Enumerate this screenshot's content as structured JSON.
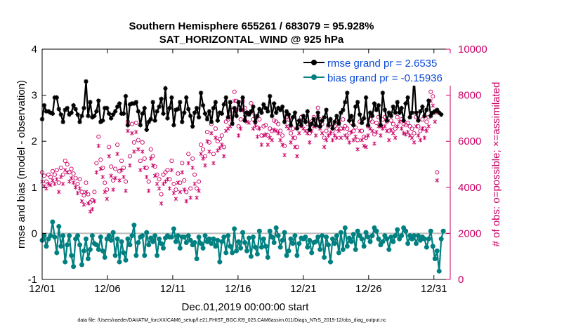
{
  "chart_data": {
    "type": "line",
    "title_line1": "Southern Hemisphere 655261 / 683079 = 95.928%",
    "title_line2": "SAT_HORIZONTAL_WIND @ 925 hPa",
    "xlabel": "Dec.01,2019 00:00:00 start",
    "ylabel_left": "rmse and bias (model - observation)",
    "ylabel_right": "# of obs: o=possible; ×=assimilated",
    "footnote": "data file: /Users/raeder/DAI/ATM_forcXX/CAM6_setup/f.e21.FHIST_BGC.f09_025.CAM6assim.011/Diags_NTrS_2019-12/obs_diag_output.nc",
    "xlim": [
      1,
      32.25
    ],
    "ylim_left": [
      -1,
      4
    ],
    "ylim_right": [
      0,
      10000
    ],
    "x_ticks": [
      1,
      6,
      11,
      16,
      21,
      26,
      31
    ],
    "x_tick_labels": [
      "12/01",
      "12/06",
      "12/11",
      "12/16",
      "12/21",
      "12/26",
      "12/31"
    ],
    "y_ticks_left": [
      -1,
      0,
      1,
      2,
      3,
      4
    ],
    "y_tick_labels_left": [
      "-1",
      "0",
      "1",
      "2",
      "3",
      "4"
    ],
    "y_ticks_right": [
      0,
      2000,
      4000,
      6000,
      8000,
      10000
    ],
    "y_tick_labels_right": [
      "0",
      "2000",
      "4000",
      "6000",
      "8000",
      "10000"
    ],
    "zero_line": 0,
    "colors": {
      "rmse": "#000000",
      "bias": "#008080",
      "obs": "#cc0066",
      "zero": "#bbbbbb"
    },
    "series": [
      {
        "name": "rmse grand pr = 2.6535",
        "axis": "left",
        "values": [
          2.48,
          2.78,
          2.65,
          2.65,
          2.62,
          2.6,
          2.95,
          2.95,
          2.7,
          2.58,
          2.42,
          2.68,
          2.72,
          2.58,
          2.62,
          2.78,
          2.7,
          2.58,
          2.42,
          2.55,
          2.72,
          3.3,
          2.55,
          2.85,
          2.52,
          2.55,
          2.65,
          2.88,
          2.42,
          2.45,
          2.72,
          2.72,
          2.6,
          2.5,
          2.58,
          2.65,
          2.75,
          2.82,
          2.6,
          2.6,
          2.98,
          2.35,
          2.8,
          2.82,
          2.82,
          2.85,
          2.65,
          2.35,
          2.6,
          2.72,
          2.25,
          2.42,
          2.48,
          2.85,
          2.45,
          2.65,
          2.75,
          2.92,
          2.6,
          3.15,
          2.5,
          2.72,
          2.95,
          2.35,
          2.68,
          2.7,
          2.85,
          2.42,
          2.62,
          2.95,
          2.7,
          2.55,
          2.32,
          2.62,
          2.72,
          2.52,
          3.05,
          2.78,
          2.6,
          2.48,
          2.65,
          2.42,
          2.72,
          2.85,
          2.45,
          2.62,
          2.6,
          2.8,
          2.95,
          2.52,
          2.85,
          2.38,
          2.72,
          2.55,
          2.85,
          2.68,
          2.95,
          2.45,
          2.62,
          2.58,
          2.65,
          2.75,
          2.42,
          2.55,
          2.7,
          2.62,
          2.8,
          2.72,
          2.65,
          2.98,
          2.55,
          2.82,
          2.62,
          2.72,
          2.68,
          2.75,
          2.42,
          2.65,
          2.58,
          2.35,
          2.52,
          2.62,
          2.28,
          2.45,
          2.35,
          2.55,
          2.42,
          2.65,
          2.25,
          2.38,
          2.48,
          2.35,
          2.62,
          2.32,
          2.45,
          2.52,
          2.68,
          2.35,
          2.48,
          2.28,
          2.42,
          2.55,
          2.38,
          2.62,
          2.68,
          2.85,
          3.05,
          2.45,
          2.55,
          2.35,
          2.75,
          2.85,
          2.58,
          2.4,
          2.5,
          2.95,
          2.35,
          2.62,
          2.55,
          2.82,
          2.68,
          2.78,
          2.35,
          3.05,
          2.68,
          2.45,
          2.62,
          2.55,
          2.75,
          2.62,
          2.85,
          2.62,
          2.72,
          2.45,
          2.82,
          2.95,
          2.52,
          2.62,
          3.38,
          2.62,
          2.45,
          2.65,
          2.75,
          2.55,
          2.68,
          2.88,
          2.55,
          2.62,
          2.65,
          2.68,
          2.62,
          2.58
        ]
      },
      {
        "name": "bias grand pr = -0.15936",
        "axis": "left",
        "values": [
          -0.15,
          -0.05,
          -0.28,
          -0.12,
          -0.05,
          0.25,
          -0.08,
          -0.42,
          0.15,
          -0.28,
          -0.05,
          -0.62,
          -0.25,
          -0.05,
          -0.48,
          -0.72,
          -0.12,
          -0.05,
          -0.25,
          -0.68,
          -0.38,
          -0.12,
          -0.55,
          -0.35,
          -0.05,
          -0.22,
          -0.25,
          -0.35,
          -0.08,
          -0.38,
          -0.52,
          -0.12,
          -0.05,
          -0.15,
          0.02,
          -0.48,
          -0.12,
          -0.62,
          -0.18,
          -0.42,
          -0.58,
          -0.12,
          -0.25,
          -0.05,
          0.18,
          -0.48,
          -0.2,
          -0.08,
          -0.05,
          -0.48,
          0.02,
          -0.25,
          -0.1,
          -0.18,
          -0.05,
          -0.48,
          -0.12,
          -0.22,
          -0.32,
          -0.1,
          -0.05,
          -0.08,
          -0.08,
          0.1,
          -0.18,
          -0.05,
          -0.32,
          -0.08,
          -0.08,
          -0.2,
          -0.05,
          -0.15,
          -0.25,
          -0.2,
          -0.55,
          -0.08,
          -0.22,
          -0.32,
          -0.05,
          -0.18,
          -0.12,
          -0.22,
          -0.12,
          -0.28,
          -0.15,
          -0.62,
          -0.18,
          -0.08,
          -0.42,
          -0.05,
          -0.28,
          -0.42,
          0.1,
          -0.38,
          -0.18,
          -0.32,
          0.02,
          -0.2,
          -0.38,
          -0.1,
          -0.5,
          -0.08,
          -0.3,
          -0.45,
          0.05,
          -0.3,
          -0.12,
          -0.28,
          -0.52,
          0.05,
          -0.08,
          -0.2,
          0.12,
          -0.05,
          -0.3,
          -0.15,
          0.02,
          -0.48,
          -0.38,
          -0.12,
          -0.22,
          -0.05,
          -0.48,
          -0.22,
          -0.1,
          -0.12,
          -0.08,
          -0.3,
          -0.15,
          -0.42,
          -0.2,
          -0.18,
          -0.08,
          -0.35,
          -0.05,
          -0.52,
          -0.08,
          -0.25,
          -0.62,
          -0.12,
          -0.22,
          -0.05,
          -0.42,
          0.02,
          -0.35,
          0.12,
          -0.28,
          -0.1,
          -0.18,
          -0.02,
          -0.35,
          0.05,
          -0.05,
          -0.12,
          -0.28,
          0.02,
          -0.08,
          -0.18,
          -0.05,
          0.12,
          0.05,
          -0.12,
          -0.25,
          -0.18,
          -0.05,
          -0.12,
          -0.35,
          -0.08,
          -0.18,
          -0.05,
          0.08,
          -0.12,
          -0.05,
          0.12,
          0.05,
          -0.22,
          -0.05,
          -0.12,
          -0.05,
          -0.22,
          -0.05,
          -0.15,
          -0.08,
          -0.12,
          -0.3,
          -0.12,
          0.05,
          -0.28,
          -0.55,
          -0.38,
          -0.82,
          -0.12,
          0.05
        ]
      }
    ],
    "obs_possible": [
      4650,
      4500,
      4250,
      4550,
      4450,
      4700,
      4550,
      4750,
      4200,
      4850,
      4550,
      5150,
      5000,
      4650,
      4800,
      4600,
      4400,
      4150,
      4350,
      3800,
      3650,
      4200,
      3700,
      3350,
      3450,
      3800,
      5050,
      6200,
      5200,
      4850,
      4200,
      3900,
      5750,
      4900,
      4300,
      4800,
      5850,
      4700,
      5150,
      4850,
      4250,
      6850,
      5350,
      6750,
      5950,
      6800,
      6050,
      5150,
      5950,
      5250,
      4850,
      4250,
      5650,
      5350,
      4900,
      4550,
      4350,
      3700,
      4550,
      4650,
      4750,
      4350,
      5150,
      4150,
      3900,
      4600,
      4200,
      5050,
      4300,
      3800,
      5450,
      3950,
      5250,
      4550,
      3950,
      4250,
      5850,
      5650,
      5350,
      6400,
      5950,
      6750,
      5450,
      6550,
      6000,
      6100,
      6250,
      5750,
      6850,
      6950,
      7050,
      7350,
      8150,
      7750,
      6650,
      6950,
      7750,
      7450,
      7250,
      7200,
      7650,
      6950,
      7100,
      6600,
      6950,
      6250,
      6650,
      6700,
      6250,
      6550,
      6450,
      6900,
      6850,
      6750,
      6450,
      6250,
      5800,
      7050,
      6950,
      6350,
      6550,
      6150,
      5750,
      6750,
      7050,
      6950,
      6850,
      6750,
      6350,
      6850,
      7050,
      6650,
      7450,
      6950,
      6750,
      6150,
      6450,
      6650,
      6750,
      6450,
      6650,
      6550,
      6850,
      6550,
      6950,
      6650,
      6550,
      6350,
      6800,
      6450,
      6600,
      6050,
      6850,
      6450,
      6200,
      6150,
      6650,
      6950,
      6850,
      6300,
      6800,
      7050,
      6650,
      6950,
      7050,
      6850,
      6450,
      6900,
      6750,
      6550,
      7050,
      7250,
      6950,
      6750,
      6700,
      6800,
      6650,
      6550,
      6350,
      7050,
      6650,
      6450,
      6950,
      6550,
      6850,
      7050,
      8150,
      7950,
      7250,
      4650
    ],
    "obs_assimilated": [
      4250,
      4050,
      3950,
      4150,
      4100,
      4300,
      4150,
      4350,
      3800,
      4450,
      4150,
      4750,
      4650,
      4250,
      4400,
      4200,
      4000,
      3750,
      3950,
      3400,
      3250,
      3800,
      3300,
      2950,
      3050,
      3400,
      4650,
      5800,
      4800,
      4450,
      3800,
      3500,
      5350,
      4500,
      3900,
      4400,
      5450,
      4300,
      4750,
      4450,
      3850,
      6450,
      4950,
      6350,
      5550,
      6400,
      5650,
      4750,
      5550,
      4850,
      4450,
      3850,
      5250,
      4950,
      4500,
      4150,
      3950,
      3300,
      4150,
      4250,
      4350,
      3950,
      4750,
      3750,
      3500,
      4200,
      3800,
      4650,
      3900,
      3400,
      5050,
      3550,
      4850,
      4150,
      3550,
      3850,
      5450,
      5250,
      4950,
      6000,
      5550,
      6350,
      5050,
      6150,
      5600,
      5700,
      5850,
      5350,
      6450,
      6550,
      6650,
      6950,
      7750,
      7350,
      6250,
      6550,
      7350,
      7050,
      6850,
      6800,
      7250,
      6550,
      6700,
      6200,
      6550,
      5850,
      6250,
      6300,
      5850,
      6150,
      6050,
      6500,
      6450,
      6350,
      6050,
      5850,
      5400,
      6650,
      6550,
      5950,
      6150,
      5750,
      5350,
      6350,
      6650,
      6550,
      6450,
      6350,
      5950,
      6450,
      6650,
      6250,
      7050,
      6550,
      6350,
      5750,
      6050,
      6250,
      6350,
      6050,
      6250,
      6150,
      6450,
      6150,
      6550,
      6250,
      6150,
      5950,
      6400,
      6050,
      6200,
      5650,
      6450,
      6050,
      5800,
      5750,
      6250,
      6550,
      6450,
      5900,
      6400,
      6650,
      6250,
      6550,
      6650,
      6450,
      6050,
      6500,
      6350,
      6150,
      6650,
      6850,
      6550,
      6350,
      6300,
      6400,
      6250,
      6150,
      5950,
      6650,
      6250,
      6050,
      6550,
      6150,
      6450,
      6650,
      7750,
      7550,
      6850,
      4300
    ]
  }
}
